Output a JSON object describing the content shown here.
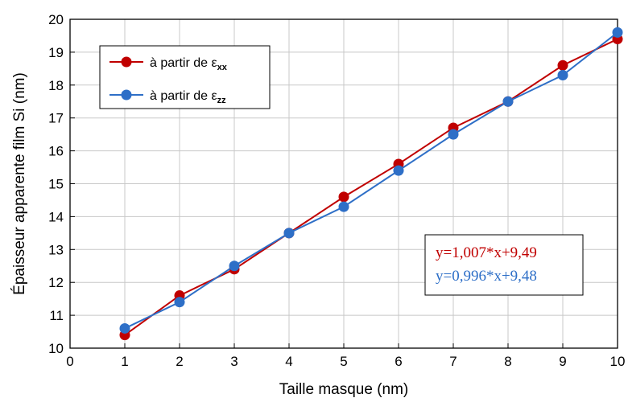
{
  "chart_data": {
    "type": "line",
    "xlabel": "Taille masque (nm)",
    "ylabel": "Épaisseur apparente film Si (nm)",
    "xlim": [
      0,
      10
    ],
    "ylim": [
      10,
      20
    ],
    "x_ticks": [
      "0",
      "1",
      "2",
      "3",
      "4",
      "5",
      "6",
      "7",
      "8",
      "9",
      "10"
    ],
    "y_ticks": [
      "10",
      "11",
      "12",
      "13",
      "14",
      "15",
      "16",
      "17",
      "18",
      "19",
      "20"
    ],
    "grid": true,
    "legend_position": "top-left",
    "x": [
      1,
      2,
      3,
      4,
      5,
      6,
      7,
      8,
      9,
      10
    ],
    "series": [
      {
        "name": "à partir de εxx",
        "name_main": "à partir de ε",
        "name_sub": "xx",
        "color": "#c00000",
        "values": [
          10.4,
          11.6,
          12.4,
          13.5,
          14.6,
          15.6,
          16.7,
          17.5,
          18.6,
          19.4
        ]
      },
      {
        "name": "à partir de εzz",
        "name_main": "à partir de ε",
        "name_sub": "zz",
        "color": "#2e6fc7",
        "values": [
          10.6,
          11.4,
          12.5,
          13.5,
          14.3,
          15.4,
          16.5,
          17.5,
          18.3,
          19.6
        ]
      }
    ],
    "annotations": [
      {
        "text": "y=1,007*x+9,49",
        "color": "#c00000"
      },
      {
        "text": "y=0,996*x+9,48",
        "color": "#2e6fc7"
      }
    ]
  }
}
